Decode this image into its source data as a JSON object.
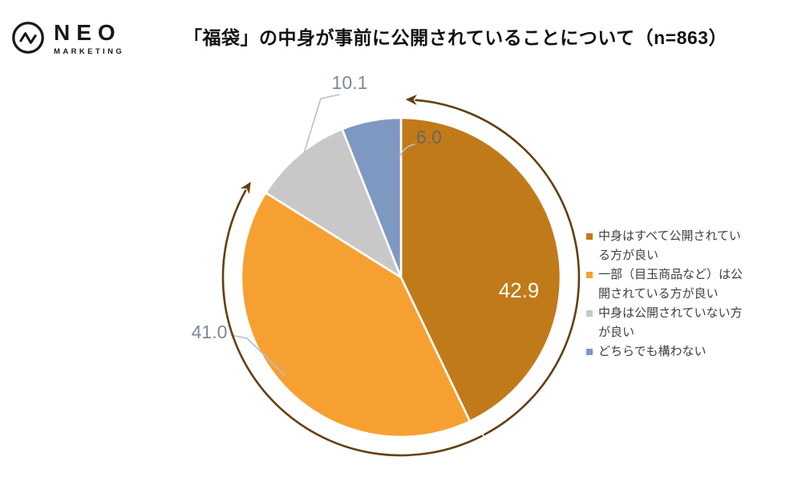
{
  "brand": {
    "name": "NEO",
    "sub": "MARKETING"
  },
  "header": {
    "title": "「福袋」の中身が事前に公開されていることについて（n=863）"
  },
  "chart_data": {
    "type": "pie",
    "title": "「福袋」の中身が事前に公開されていることについて",
    "sample_size": 863,
    "sample_size_label": "n=863",
    "categories": [
      "中身はすべて公開されている方が良い",
      "一部（目玉商品など）は公開されている方が良い",
      "中身は公開されていない方が良い",
      "どちらでも構わない"
    ],
    "values": [
      42.9,
      41.0,
      10.1,
      6.0
    ],
    "display_values": [
      "42.9",
      "41.0",
      "10.1",
      "6.0"
    ],
    "unit": "percent",
    "colors": [
      "#C17A19",
      "#F7A032",
      "#C8C8C8",
      "#7F98C2"
    ],
    "start_angle_deg": 0,
    "direction": "clockwise",
    "legend_position": "right",
    "slice_border_color": "#FFFFFF",
    "inside_label_color": "#FFFFFF",
    "outside_label_color": "#7D8A97",
    "small_label_color": "#6C675C",
    "leader_line_color": "#B6C0CC",
    "arrow_color": "#63400F",
    "legend_text_color": "#3F3F3F"
  }
}
